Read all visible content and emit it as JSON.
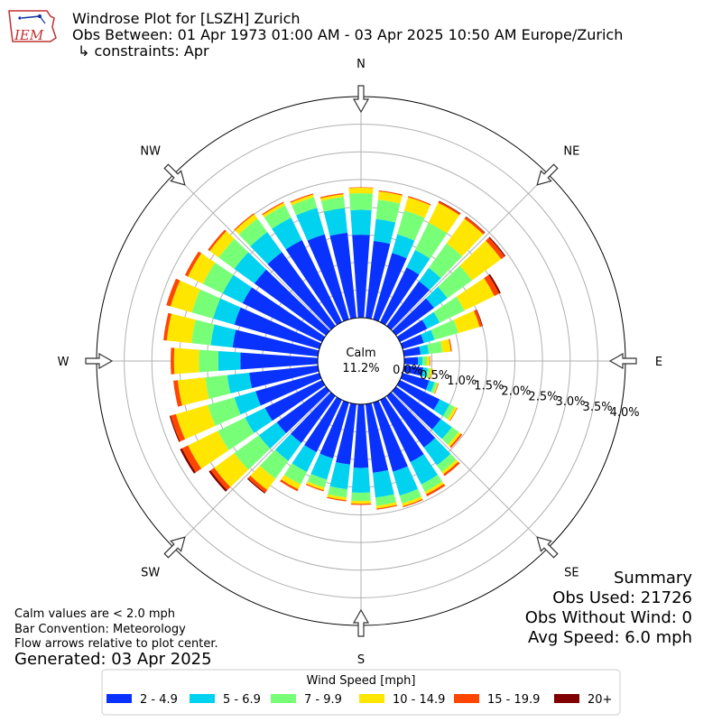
{
  "header": {
    "logo_text": "IEM",
    "title_line1": "Windrose Plot for [LSZH] Zurich",
    "title_line2": "Obs Between: 01 Apr 1973 01:00 AM - 03 Apr 2025 10:50 AM Europe/Zurich",
    "title_line3": "↳ constraints: Apr"
  },
  "notes": {
    "calm_note": "Calm values are < 2.0 mph",
    "bar_convention": "Bar Convention: Meteorology",
    "flow_arrows": "Flow arrows relative to plot center.",
    "generated": "Generated: 03 Apr 2025"
  },
  "summary": {
    "heading": "Summary",
    "obs_used": "Obs Used: 21726",
    "obs_without_wind": "Obs Without Wind: 0",
    "avg_speed": "Avg Speed: 6.0 mph"
  },
  "colors": {
    "c1": "#0a32ff",
    "c2": "#00d2f0",
    "c3": "#78ff78",
    "c4": "#ffe600",
    "c5": "#ff4600",
    "c6": "#800000"
  },
  "chart_data": {
    "type": "windrose",
    "calm_label": "Calm",
    "calm_value": "11.2%",
    "calm_percent": 11.2,
    "directions": [
      0,
      10,
      20,
      30,
      40,
      50,
      60,
      70,
      80,
      90,
      100,
      110,
      120,
      130,
      140,
      150,
      160,
      170,
      180,
      190,
      200,
      210,
      220,
      230,
      240,
      250,
      260,
      270,
      280,
      290,
      300,
      310,
      320,
      330,
      340,
      350
    ],
    "compass_labels": [
      {
        "label": "N",
        "deg": 0
      },
      {
        "label": "NE",
        "deg": 45
      },
      {
        "label": "E",
        "deg": 90
      },
      {
        "label": "SE",
        "deg": 135
      },
      {
        "label": "S",
        "deg": 180
      },
      {
        "label": "SW",
        "deg": 225
      },
      {
        "label": "W",
        "deg": 270
      },
      {
        "label": "NW",
        "deg": 315
      }
    ],
    "r_ticks": [
      0.0,
      0.5,
      1.0,
      1.5,
      2.0,
      2.5,
      3.0,
      3.5,
      4.0
    ],
    "r_tick_labels": [
      "0.0%",
      "0.5%",
      "1.0%",
      "1.5%",
      "2.0%",
      "2.5%",
      "3.0%",
      "3.5%",
      "4.0%"
    ],
    "rmax": 4.0,
    "legend_title": "Wind Speed [mph]",
    "legend_labels": [
      "2 - 4.9",
      "5 - 6.9",
      "7 - 9.9",
      "10 - 14.9",
      "15 - 19.9",
      "20+"
    ],
    "series": [
      {
        "name": "2 - 4.9",
        "values": [
          1.5,
          1.4,
          1.25,
          1.1,
          1.0,
          0.85,
          0.55,
          0.4,
          0.3,
          0.25,
          0.35,
          0.5,
          0.8,
          1.0,
          1.15,
          1.25,
          1.3,
          1.25,
          1.15,
          1.1,
          1.05,
          1.05,
          1.05,
          1.1,
          1.15,
          1.2,
          1.25,
          1.4,
          1.55,
          1.6,
          1.6,
          1.6,
          1.65,
          1.65,
          1.6,
          1.55
        ]
      },
      {
        "name": "5 - 6.9",
        "values": [
          0.45,
          0.4,
          0.35,
          0.35,
          0.3,
          0.3,
          0.25,
          0.2,
          0.15,
          0.08,
          0.08,
          0.1,
          0.2,
          0.25,
          0.4,
          0.45,
          0.45,
          0.45,
          0.45,
          0.45,
          0.4,
          0.4,
          0.4,
          0.4,
          0.4,
          0.4,
          0.4,
          0.4,
          0.4,
          0.4,
          0.4,
          0.45,
          0.45,
          0.45,
          0.5,
          0.45
        ]
      },
      {
        "name": "7 - 9.9",
        "values": [
          0.3,
          0.35,
          0.45,
          0.55,
          0.55,
          0.55,
          0.5,
          0.45,
          0.25,
          0.08,
          0.05,
          0.05,
          0.1,
          0.15,
          0.15,
          0.15,
          0.15,
          0.15,
          0.15,
          0.15,
          0.15,
          0.25,
          0.4,
          0.55,
          0.55,
          0.5,
          0.4,
          0.35,
          0.35,
          0.4,
          0.4,
          0.35,
          0.3,
          0.25,
          0.2,
          0.2
        ]
      },
      {
        "name": "10 - 14.9",
        "values": [
          0.1,
          0.15,
          0.25,
          0.4,
          0.55,
          0.65,
          0.6,
          0.4,
          0.15,
          0.05,
          0.03,
          0.02,
          0.05,
          0.05,
          0.05,
          0.05,
          0.05,
          0.05,
          0.05,
          0.05,
          0.05,
          0.1,
          0.25,
          0.45,
          0.6,
          0.6,
          0.5,
          0.45,
          0.45,
          0.4,
          0.3,
          0.2,
          0.1,
          0.05,
          0.05,
          0.05
        ]
      },
      {
        "name": "15 - 19.9",
        "values": [
          0.01,
          0.02,
          0.02,
          0.03,
          0.04,
          0.08,
          0.1,
          0.05,
          0.02,
          0.01,
          0.01,
          0.01,
          0.01,
          0.03,
          0.04,
          0.04,
          0.02,
          0.02,
          0.02,
          0.02,
          0.02,
          0.04,
          0.06,
          0.08,
          0.12,
          0.1,
          0.08,
          0.06,
          0.06,
          0.08,
          0.06,
          0.04,
          0.02,
          0.02,
          0.02,
          0.02
        ]
      },
      {
        "name": "20+",
        "values": [
          0.0,
          0.0,
          0.0,
          0.01,
          0.01,
          0.02,
          0.03,
          0.01,
          0.0,
          0.0,
          0.0,
          0.0,
          0.0,
          0.0,
          0.0,
          0.0,
          0.0,
          0.0,
          0.0,
          0.0,
          0.0,
          0.0,
          0.02,
          0.04,
          0.04,
          0.02,
          0.0,
          0.0,
          0.0,
          0.0,
          0.0,
          0.0,
          0.0,
          0.0,
          0.0,
          0.0
        ]
      }
    ]
  }
}
